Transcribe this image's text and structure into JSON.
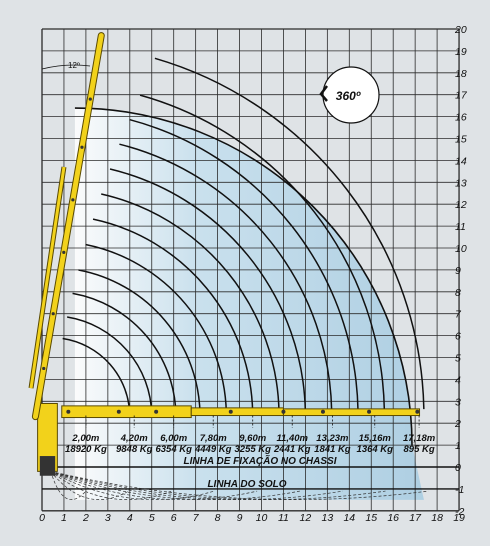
{
  "colors": {
    "background": "#dfe3e6",
    "grid": "#2b2b2b",
    "envelope_fill": "#bcd9e9",
    "boom": "#f2d21b",
    "boom_outline": "#5a4a00",
    "arc": "#111111"
  },
  "axes": {
    "x_ticks": [
      "0",
      "1",
      "2",
      "3",
      "4",
      "5",
      "6",
      "7",
      "8",
      "9",
      "10",
      "11",
      "12",
      "13",
      "14",
      "15",
      "16",
      "17",
      "18",
      "19"
    ],
    "y_ticks": [
      "-2",
      "-1",
      "0",
      "1",
      "2",
      "3",
      "4",
      "5",
      "6",
      "7",
      "8",
      "9",
      "10",
      "11",
      "12",
      "13",
      "14",
      "15",
      "16",
      "17",
      "18",
      "19",
      "20"
    ]
  },
  "labels": {
    "rotation": "360º",
    "angle": "12º",
    "chassis_line": "LINHA DE FIXAÇÃO NO CHASSI",
    "ground_line": "LINHA DO SOLO"
  },
  "chart_data": {
    "type": "load-chart",
    "xlim": [
      0,
      19
    ],
    "ylim": [
      -2,
      20
    ],
    "grid": true,
    "capacities": [
      {
        "reach": "2,00m",
        "load": "18920 Kg",
        "x_m": 2.0
      },
      {
        "reach": "4,20m",
        "load": "9848 Kg",
        "x_m": 4.2
      },
      {
        "reach": "6,00m",
        "load": "6354 Kg",
        "x_m": 6.0
      },
      {
        "reach": "7,80m",
        "load": "4449 Kg",
        "x_m": 7.8
      },
      {
        "reach": "9,60m",
        "load": "3255 Kg",
        "x_m": 9.6
      },
      {
        "reach": "11,40m",
        "load": "2441 Kg",
        "x_m": 11.4
      },
      {
        "reach": "13,23m",
        "load": "1841 Kg",
        "x_m": 13.23
      },
      {
        "reach": "15,16m",
        "load": "1364 Kg",
        "x_m": 15.16
      },
      {
        "reach": "17,18m",
        "load": "895 Kg",
        "x_m": 17.18
      }
    ],
    "chassis_line_y": 0,
    "ground_line_y": -1
  }
}
